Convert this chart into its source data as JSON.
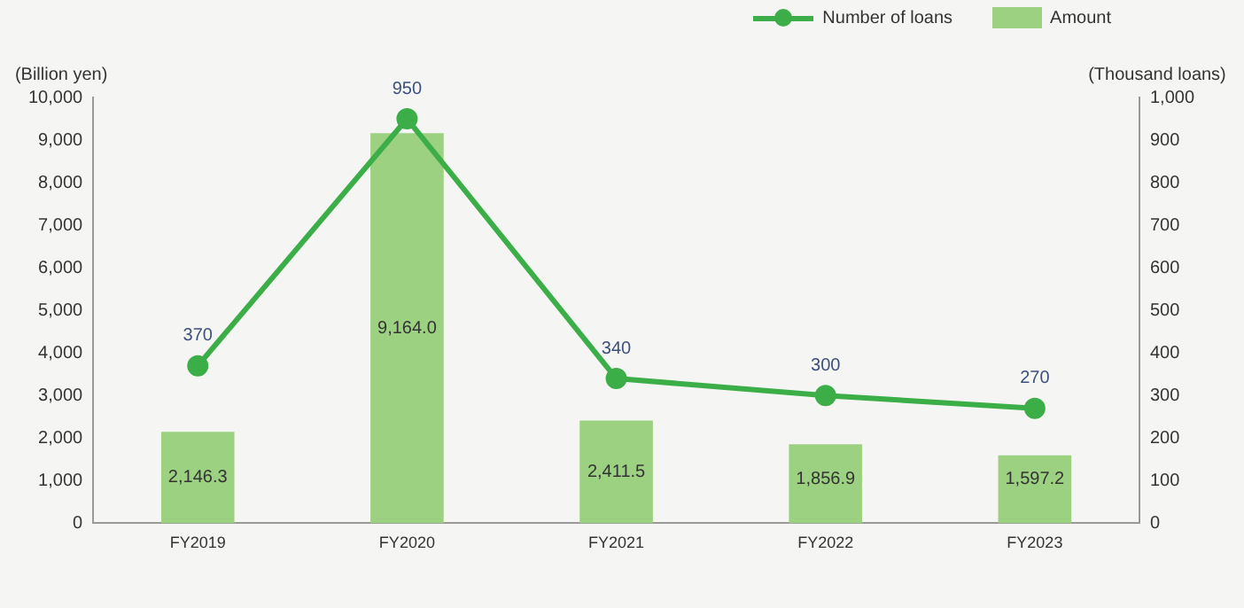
{
  "chart_data": {
    "type": "bar",
    "ylabel": "(Billion yen)",
    "y2label": "(Thousand loans)",
    "categories": [
      "FY2019",
      "FY2020",
      "FY2021",
      "FY2022",
      "FY2023"
    ],
    "series": [
      {
        "name": "Number of loans",
        "type": "line",
        "axis": "y2",
        "color": "#3cae48",
        "marker": "circle",
        "values": [
          370,
          950,
          340,
          300,
          270
        ],
        "value_labels": [
          "370",
          "950",
          "340",
          "300",
          "270"
        ]
      },
      {
        "name": "Amount",
        "color": "#9dd182",
        "values": [
          2146.3,
          9164.0,
          2411.5,
          1856.9,
          1597.2
        ],
        "value_labels": [
          "2,146.3",
          "9,164.0",
          "2,411.5",
          "1,856.9",
          "1,597.2"
        ]
      }
    ],
    "ylim": [
      0,
      10000
    ],
    "yticks": [
      0,
      {
        "value": 1000,
        "label": "1,000"
      },
      {
        "value": 2000,
        "label": "2,000"
      },
      {
        "value": 3000,
        "label": "3,000"
      },
      {
        "value": 4000,
        "label": "4,000"
      },
      {
        "value": 5000,
        "label": "5,000"
      },
      {
        "value": 6000,
        "label": "6,000"
      },
      {
        "value": 7000,
        "label": "7,000"
      },
      {
        "value": 8000,
        "label": "8,000"
      },
      {
        "value": 9000,
        "label": "9,000"
      },
      {
        "value": 10000,
        "label": "10,000"
      }
    ],
    "y2lim": [
      0,
      1000
    ],
    "y2ticks": [
      0,
      100,
      200,
      300,
      400,
      500,
      600,
      700,
      800,
      900,
      {
        "value": 1000,
        "label": "1,000"
      }
    ],
    "grid": false,
    "legend": "top right"
  }
}
